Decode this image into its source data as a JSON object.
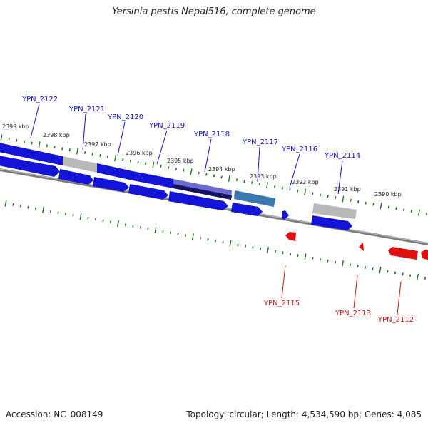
{
  "title": "Yersinia pestis Nepal516, complete genome",
  "footer": {
    "accession": "Accession: NC_008149",
    "summary": "Topology: circular; Length: 4,534,590 bp; Genes: 4,085"
  },
  "colors": {
    "forward_gene": "#1010d8",
    "reverse_gene": "#e01010",
    "pseudo_gene": "#b8b8b8",
    "highlight_purple": "#6a6ad0",
    "highlight_teal": "#3a78b0",
    "backbone": "#808080",
    "tick": "#1a7a1a",
    "forward_label": "#1010c0",
    "reverse_label": "#cc1010"
  },
  "kbp_labels": [
    "2399 kbp",
    "2398 kbp",
    "2397 kbp",
    "2396 kbp",
    "2395 kbp",
    "2394 kbp",
    "2393 kbp",
    "2392 kbp",
    "2391 kbp",
    "2390 kbp"
  ],
  "forward_gene_labels": [
    "YPN_2122",
    "YPN_2121",
    "YPN_2120",
    "YPN_2119",
    "YPN_2118",
    "YPN_2117",
    "YPN_2116",
    "YPN_2114"
  ],
  "reverse_gene_labels": [
    "YPN_2115",
    "YPN_2113",
    "YPN_2112"
  ]
}
